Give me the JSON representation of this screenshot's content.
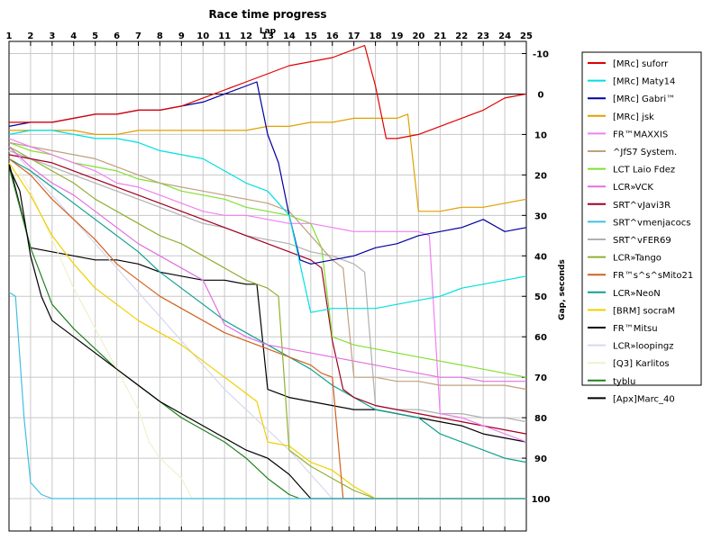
{
  "chart_data": {
    "type": "line",
    "title": "Race time progress",
    "xlabel": "Lap",
    "ylabel": "Gap, seconds",
    "x_ticks": [
      1,
      2,
      3,
      4,
      5,
      6,
      7,
      8,
      9,
      10,
      11,
      12,
      13,
      14,
      15,
      16,
      17,
      18,
      19,
      20,
      21,
      22,
      23,
      24,
      25
    ],
    "y_ticks": [
      -10,
      0,
      10,
      20,
      30,
      40,
      50,
      60,
      70,
      80,
      90,
      100
    ],
    "y_tick_labels": [
      "-10",
      "0",
      "10",
      "20",
      "30",
      "40",
      "50",
      "60",
      "70",
      "80",
      "90",
      "100"
    ],
    "xlim": [
      1,
      25
    ],
    "ylim": [
      -13,
      108
    ],
    "y_inverted": true,
    "grid": true,
    "legend_position": "right",
    "series": [
      {
        "name": "[MRc] suforr",
        "color": "#e00000",
        "x": [
          1,
          2,
          3,
          4,
          5,
          6,
          7,
          8,
          9,
          10,
          11,
          12,
          13,
          14,
          15,
          16,
          17,
          17.5,
          18,
          18.5,
          19,
          20,
          21,
          22,
          23,
          24,
          25
        ],
        "values": [
          7,
          7,
          7,
          6,
          5,
          5,
          4,
          4,
          3,
          1,
          -1,
          -3,
          -5,
          -7,
          -8,
          -9,
          -11,
          -12,
          -2,
          11,
          11,
          10,
          8,
          6,
          4,
          1,
          0
        ]
      },
      {
        "name": "[MRc] Maty14",
        "color": "#00e0e0",
        "x": [
          1,
          2,
          3,
          4,
          5,
          6,
          7,
          8,
          9,
          10,
          11,
          12,
          13,
          14,
          15,
          16,
          17,
          18,
          19,
          20,
          21,
          22,
          23,
          24,
          25
        ],
        "values": [
          10,
          9,
          9,
          10,
          11,
          11,
          12,
          14,
          15,
          16,
          19,
          22,
          24,
          30,
          54,
          53,
          53,
          53,
          52,
          51,
          50,
          48,
          47,
          46,
          45
        ]
      },
      {
        "name": "[MRc] Gabri™",
        "color": "#0000a0",
        "x": [
          1,
          2,
          3,
          4,
          5,
          6,
          7,
          8,
          9,
          10,
          11,
          12,
          12.5,
          13,
          13.5,
          14,
          14.5,
          15,
          16,
          17,
          18,
          19,
          20,
          21,
          22,
          23,
          24,
          25
        ],
        "values": [
          8,
          7,
          7,
          6,
          5,
          5,
          4,
          4,
          3,
          2,
          0,
          -2,
          -3,
          10,
          17,
          30,
          41,
          42,
          41,
          40,
          38,
          37,
          35,
          34,
          33,
          31,
          34,
          33
        ]
      },
      {
        "name": "[MRc] jsk",
        "color": "#e0a000",
        "x": [
          1,
          2,
          3,
          4,
          5,
          6,
          7,
          8,
          9,
          10,
          11,
          12,
          13,
          14,
          15,
          16,
          17,
          18,
          19,
          19.5,
          20,
          21,
          22,
          23,
          24,
          25
        ],
        "values": [
          9,
          9,
          9,
          9,
          10,
          10,
          9,
          9,
          9,
          9,
          9,
          9,
          8,
          8,
          7,
          7,
          6,
          6,
          6,
          5,
          29,
          29,
          28,
          28,
          27,
          26
        ]
      },
      {
        "name": "FR™MAXXIS",
        "color": "#f080f0",
        "x": [
          1,
          2,
          3,
          4,
          5,
          6,
          7,
          8,
          9,
          10,
          11,
          12,
          13,
          14,
          15,
          16,
          17,
          18,
          19,
          20,
          20.5,
          21,
          22,
          23,
          24,
          25
        ],
        "values": [
          11,
          13,
          15,
          17,
          19,
          22,
          23,
          25,
          27,
          29,
          30,
          30,
          31,
          32,
          32,
          33,
          34,
          34,
          34,
          34,
          35,
          79,
          80,
          82,
          84,
          86
        ]
      },
      {
        "name": "^JfS7 System.",
        "color": "#c0a080",
        "x": [
          1,
          2,
          3,
          4,
          5,
          6,
          7,
          8,
          9,
          10,
          11,
          12,
          13,
          14,
          15,
          16,
          16.5,
          17,
          18,
          19,
          20,
          21,
          22,
          23,
          24,
          25
        ],
        "values": [
          12,
          13,
          14,
          15,
          16,
          18,
          20,
          22,
          23,
          24,
          25,
          26,
          27,
          29,
          35,
          41,
          43,
          70,
          70,
          71,
          71,
          72,
          72,
          72,
          72,
          73
        ]
      },
      {
        "name": "LCT Laio Fdez",
        "color": "#80e030",
        "x": [
          1,
          2,
          3,
          4,
          5,
          6,
          7,
          8,
          9,
          10,
          11,
          12,
          13,
          14,
          15,
          15.5,
          16,
          17,
          18,
          19,
          20,
          21,
          22,
          23,
          24,
          25
        ],
        "values": [
          12,
          14,
          15,
          17,
          18,
          19,
          21,
          22,
          24,
          25,
          26,
          28,
          29,
          30,
          32,
          38,
          60,
          62,
          63,
          64,
          65,
          66,
          67,
          68,
          69,
          70
        ]
      },
      {
        "name": "LCR»VCK",
        "color": "#e070e0",
        "x": [
          1,
          2,
          3,
          4,
          5,
          6,
          7,
          8,
          9,
          10,
          11,
          12,
          13,
          14,
          15,
          16,
          17,
          18,
          19,
          20,
          21,
          22,
          23,
          24,
          25
        ],
        "values": [
          13,
          18,
          22,
          25,
          29,
          33,
          37,
          40,
          43,
          46,
          57,
          60,
          62,
          63,
          64,
          65,
          66,
          67,
          68,
          69,
          70,
          70,
          71,
          71,
          71
        ]
      },
      {
        "name": "SRT^vJavi3R",
        "color": "#a00020",
        "x": [
          1,
          2,
          3,
          4,
          5,
          6,
          7,
          8,
          9,
          10,
          11,
          12,
          13,
          14,
          15,
          15.5,
          16,
          16.5,
          17,
          18,
          19,
          20,
          21,
          22,
          23,
          24,
          25
        ],
        "values": [
          15,
          16,
          17,
          19,
          21,
          23,
          25,
          27,
          29,
          31,
          33,
          35,
          37,
          39,
          41,
          43,
          61,
          73,
          75,
          77,
          78,
          79,
          80,
          81,
          82,
          83,
          84
        ]
      },
      {
        "name": "SRT^vmenjacocs",
        "color": "#40c0e0",
        "x": [
          1,
          1.3,
          1.7,
          2,
          2.5,
          3,
          4,
          5,
          6,
          7,
          8,
          9,
          10,
          11,
          12,
          13,
          14,
          15,
          16,
          17,
          18,
          19,
          20,
          21,
          22,
          23,
          24,
          25
        ],
        "values": [
          49,
          50,
          80,
          96,
          99,
          100,
          100,
          100,
          100,
          100,
          100,
          100,
          100,
          100,
          100,
          100,
          100,
          100,
          100,
          100,
          100,
          100,
          100,
          100,
          100,
          100,
          100,
          100
        ]
      },
      {
        "name": "SRT^vFER69",
        "color": "#b0b0b0",
        "x": [
          1,
          2,
          3,
          4,
          5,
          6,
          7,
          8,
          9,
          10,
          11,
          12,
          13,
          14,
          15,
          16,
          17,
          17.5,
          18,
          19,
          20,
          21,
          22,
          23,
          24,
          25
        ],
        "values": [
          14,
          16,
          18,
          20,
          22,
          24,
          26,
          28,
          30,
          32,
          33,
          35,
          36,
          37,
          39,
          40,
          42,
          44,
          77,
          78,
          78,
          79,
          79,
          80,
          80,
          81
        ]
      },
      {
        "name": "LCR»Tango",
        "color": "#90b030",
        "x": [
          1,
          2,
          3,
          4,
          5,
          6,
          7,
          8,
          9,
          10,
          11,
          12,
          13,
          13.5,
          14,
          14.5,
          15,
          16,
          17,
          18,
          19,
          20,
          21,
          22,
          23,
          24,
          25
        ],
        "values": [
          13,
          16,
          19,
          22,
          26,
          29,
          32,
          35,
          37,
          40,
          43,
          46,
          48,
          50,
          88,
          90,
          92,
          95,
          98,
          100,
          100,
          100,
          100,
          100,
          100,
          100,
          100
        ]
      },
      {
        "name": "FR™s^s^sMito21",
        "color": "#d06020",
        "x": [
          1,
          2,
          3,
          4,
          5,
          6,
          7,
          8,
          9,
          10,
          11,
          12,
          13,
          14,
          15,
          15.5,
          16,
          16.5,
          17,
          18,
          19,
          20,
          21,
          22,
          23,
          24,
          25
        ],
        "values": [
          16,
          20,
          26,
          31,
          36,
          42,
          46,
          50,
          53,
          56,
          59,
          61,
          63,
          65,
          67,
          69,
          70,
          100,
          100,
          100,
          100,
          100,
          100,
          100,
          100,
          100,
          100
        ]
      },
      {
        "name": "LCR»NeoN",
        "color": "#10a090",
        "x": [
          1,
          2,
          3,
          4,
          5,
          6,
          7,
          8,
          9,
          10,
          11,
          12,
          13,
          14,
          15,
          16,
          17,
          18,
          19,
          20,
          20.5,
          21,
          22,
          23,
          24,
          25
        ],
        "values": [
          16,
          19,
          23,
          27,
          31,
          35,
          39,
          44,
          48,
          52,
          56,
          59,
          62,
          65,
          68,
          72,
          75,
          78,
          79,
          80,
          82,
          84,
          86,
          88,
          90,
          91
        ]
      },
      {
        "name": "[BRM] socraM",
        "color": "#f0d000",
        "x": [
          1,
          2,
          3,
          4,
          5,
          6,
          7,
          8,
          9,
          10,
          11,
          12,
          12.5,
          13,
          14,
          15,
          16,
          17,
          18,
          19,
          20,
          21,
          22,
          23,
          24,
          25
        ],
        "values": [
          17,
          25,
          35,
          42,
          48,
          52,
          56,
          59,
          62,
          66,
          70,
          74,
          76,
          86,
          87,
          91,
          93,
          97,
          100,
          100,
          100,
          100,
          100,
          100,
          100,
          100
        ]
      },
      {
        "name": "FR™Mitsu",
        "color": "#000000",
        "x": [
          1,
          1.5,
          2,
          2.5,
          3,
          3.5,
          4,
          5,
          6,
          7,
          8,
          9,
          10,
          11,
          12,
          13,
          14,
          15,
          15.5,
          16,
          17,
          18,
          19,
          20,
          21,
          22,
          23,
          24,
          25
        ],
        "values": [
          18,
          24,
          40,
          50,
          56,
          58,
          60,
          64,
          68,
          72,
          76,
          79,
          82,
          85,
          88,
          90,
          94,
          100,
          100,
          100,
          100,
          100,
          100,
          100,
          100,
          100,
          100,
          100,
          100
        ]
      },
      {
        "name": "LCR»loopingz",
        "color": "#d8d8f0",
        "x": [
          1,
          2,
          3,
          4,
          5,
          6,
          7,
          8,
          9,
          10,
          11,
          12,
          13,
          14,
          15,
          16,
          17,
          18,
          19,
          20,
          21,
          22,
          23,
          24,
          25
        ],
        "values": [
          13,
          19,
          25,
          31,
          37,
          43,
          49,
          55,
          61,
          67,
          73,
          78,
          83,
          88,
          94,
          100,
          100,
          100,
          100,
          100,
          100,
          100,
          100,
          100,
          100
        ]
      },
      {
        "name": "[Q3] Karlitos",
        "color": "#f0f0d0",
        "x": [
          1,
          2,
          3,
          4,
          5,
          6,
          7,
          7.5,
          8,
          9,
          9.5,
          10,
          11,
          12,
          13,
          14,
          15,
          16,
          17,
          18,
          19,
          20,
          21,
          22,
          23,
          24,
          25
        ],
        "values": [
          14,
          24,
          36,
          48,
          58,
          68,
          78,
          86,
          90,
          95,
          100,
          100,
          100,
          100,
          100,
          100,
          100,
          100,
          100,
          100,
          100,
          100,
          100,
          100,
          100,
          100,
          100
        ]
      },
      {
        "name": "tyblu",
        "color": "#208020",
        "x": [
          1,
          2,
          3,
          4,
          5,
          6,
          7,
          8,
          9,
          10,
          11,
          12,
          13,
          14,
          14.5,
          15,
          16,
          17,
          18,
          19,
          20,
          21,
          22,
          23,
          24,
          25
        ],
        "values": [
          18,
          38,
          52,
          58,
          63,
          68,
          72,
          76,
          80,
          83,
          86,
          90,
          95,
          99,
          100,
          100,
          100,
          100,
          100,
          100,
          100,
          100,
          100,
          100,
          100,
          100
        ]
      },
      {
        "name": "[Apx]Marc_40",
        "color": "#000000",
        "x": [
          1,
          2,
          3,
          4,
          5,
          6,
          7,
          8,
          9,
          10,
          11,
          12,
          12.5,
          13,
          14,
          15,
          16,
          17,
          18,
          19,
          20,
          21,
          22,
          23,
          24,
          25
        ],
        "values": [
          17,
          38,
          39,
          40,
          41,
          41,
          42,
          44,
          45,
          46,
          46,
          47,
          47,
          73,
          75,
          76,
          77,
          78,
          78,
          79,
          80,
          81,
          82,
          84,
          85,
          86
        ]
      }
    ]
  }
}
